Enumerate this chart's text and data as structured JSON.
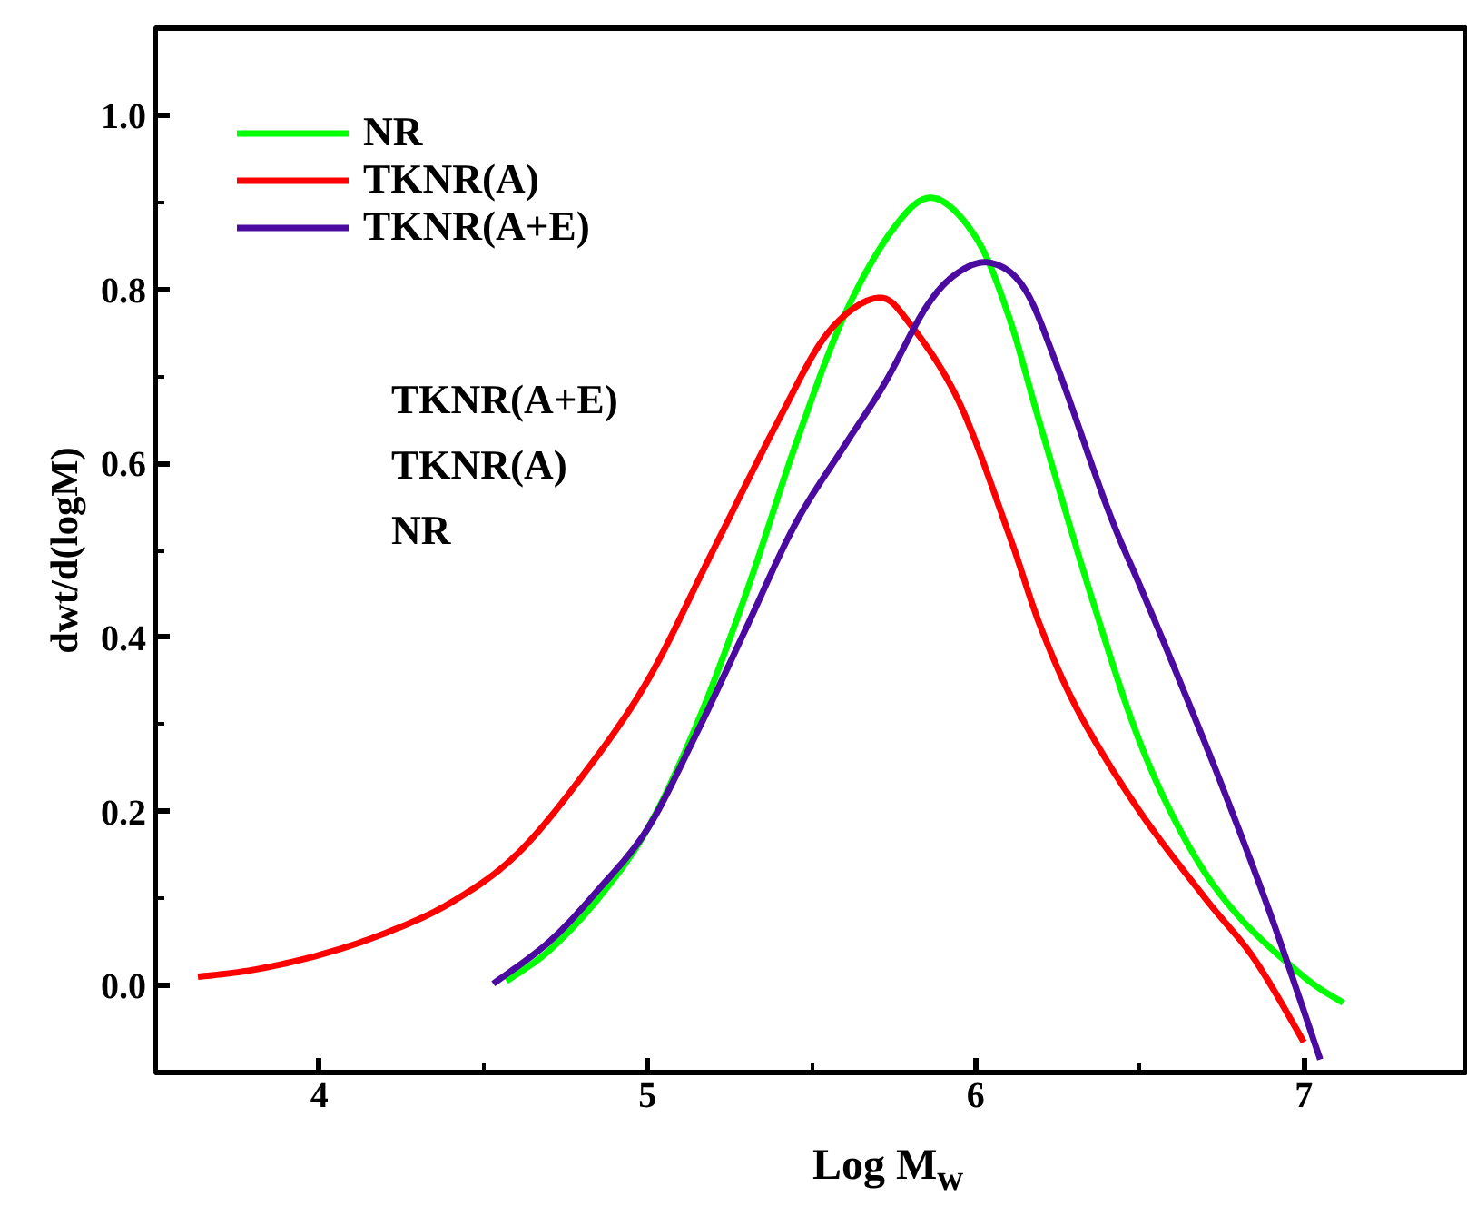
{
  "chart_data": {
    "type": "line",
    "xlabel": "Log M$_{w}$",
    "ylabel": "dwt/d(logM)",
    "xlim": [
      3.5,
      7.5
    ],
    "ylim": [
      -0.1,
      1.1
    ],
    "xticks": [
      4,
      5,
      6,
      7
    ],
    "yticks": [
      {
        "value": 0,
        "label": "0.0"
      },
      {
        "value": 0.2,
        "label": "0.2"
      },
      {
        "value": 0.4,
        "label": "0.4"
      },
      {
        "value": 0.6,
        "label": "0.6"
      },
      {
        "value": 0.8,
        "label": "0.8"
      },
      {
        "value": 1.0,
        "label": "1.0"
      }
    ],
    "grid": false,
    "legend": "top left",
    "line_style": "solid",
    "marker": "none",
    "annotations": [
      "TKNR(A+E)",
      "TKNR(A)",
      "NR"
    ],
    "series": [
      {
        "name": "NR",
        "color": "#00ff00",
        "x": [
          4.57,
          4.7,
          4.85,
          5.0,
          5.15,
          5.3,
          5.45,
          5.6,
          5.75,
          5.87,
          6.0,
          6.1,
          6.2,
          6.35,
          6.5,
          6.65,
          6.8,
          7.0,
          7.12
        ],
        "values": [
          0.005,
          0.04,
          0.1,
          0.18,
          0.3,
          0.45,
          0.62,
          0.77,
          0.87,
          0.905,
          0.86,
          0.77,
          0.64,
          0.45,
          0.28,
          0.16,
          0.08,
          0.01,
          -0.02
        ]
      },
      {
        "name": "TKNR(A)",
        "color": "#ff0000",
        "x": [
          3.63,
          3.8,
          4.0,
          4.2,
          4.4,
          4.6,
          4.8,
          5.0,
          5.2,
          5.4,
          5.55,
          5.7,
          5.8,
          5.95,
          6.1,
          6.2,
          6.32,
          6.5,
          6.7,
          6.85,
          7.0
        ],
        "values": [
          0.01,
          0.018,
          0.035,
          0.06,
          0.095,
          0.15,
          0.24,
          0.35,
          0.5,
          0.65,
          0.75,
          0.79,
          0.76,
          0.67,
          0.52,
          0.41,
          0.31,
          0.2,
          0.1,
          0.03,
          -0.065
        ]
      },
      {
        "name": "TKNR(A+E)",
        "color": "#4b0aa0",
        "x": [
          4.53,
          4.7,
          4.85,
          5.0,
          5.15,
          5.3,
          5.45,
          5.6,
          5.72,
          5.85,
          5.95,
          6.05,
          6.15,
          6.25,
          6.4,
          6.5,
          6.6,
          6.75,
          6.9,
          7.05
        ],
        "values": [
          0.002,
          0.05,
          0.11,
          0.18,
          0.29,
          0.41,
          0.53,
          0.62,
          0.69,
          0.78,
          0.82,
          0.83,
          0.8,
          0.71,
          0.55,
          0.46,
          0.37,
          0.23,
          0.08,
          -0.085
        ]
      }
    ]
  }
}
